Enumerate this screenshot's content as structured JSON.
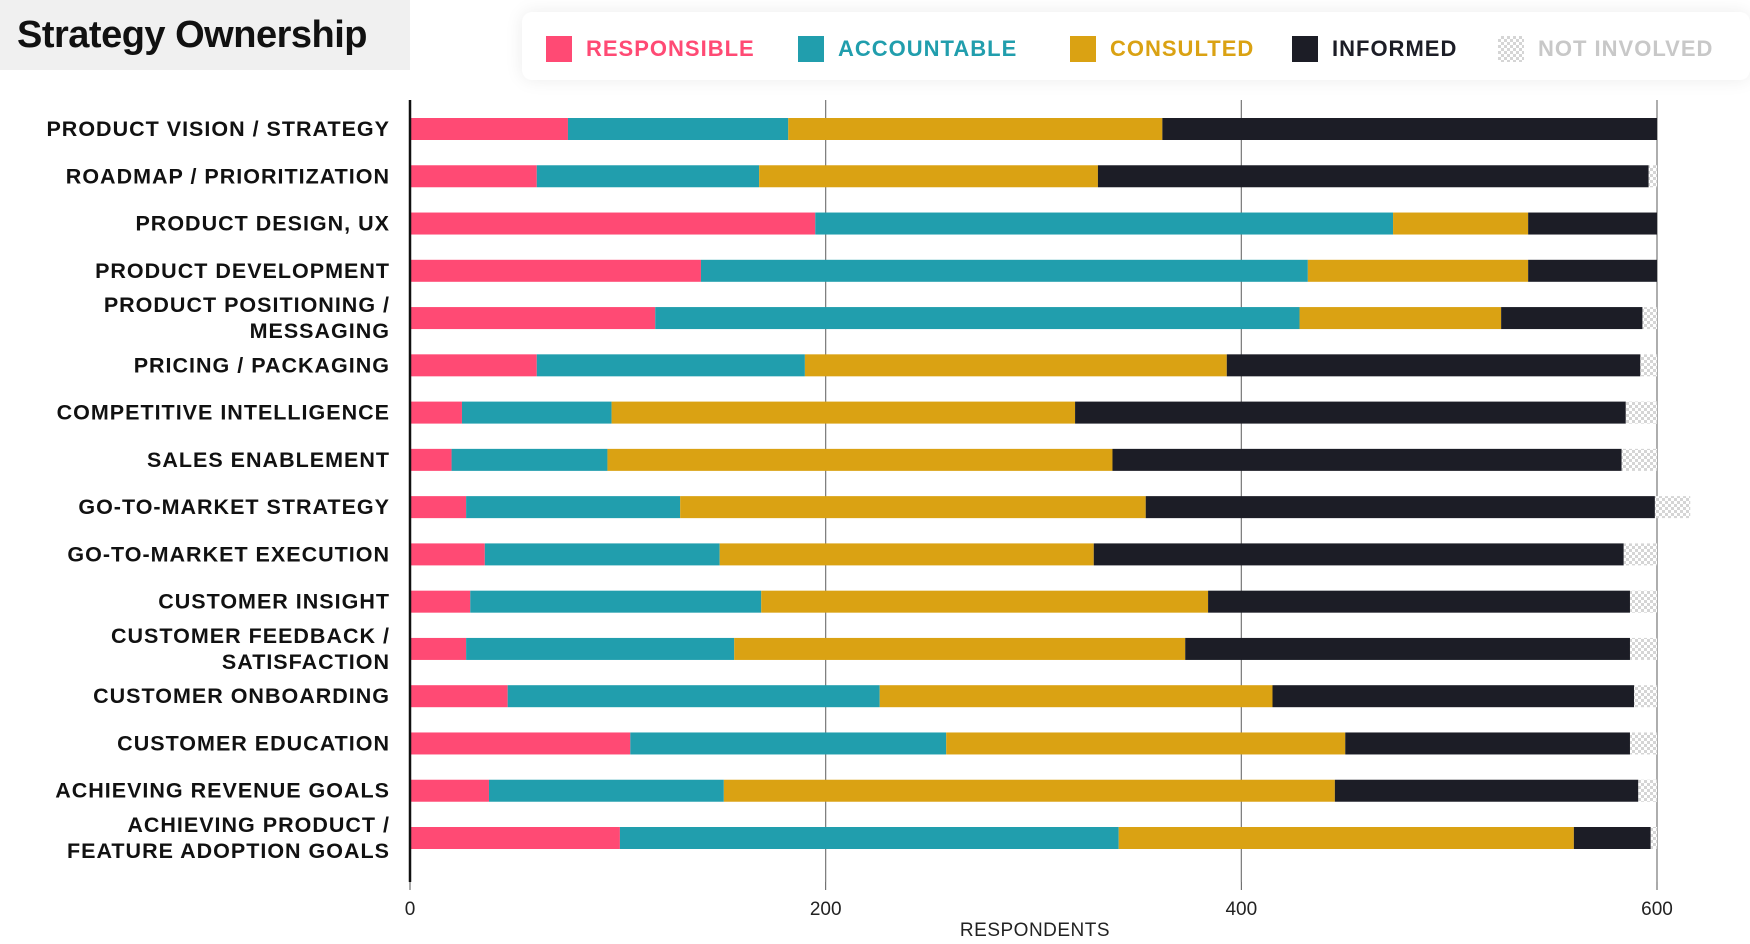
{
  "title": "Strategy Ownership",
  "legend": [
    {
      "label": "RESPONSIBLE",
      "color": "#ff4a74",
      "text_color": "#ff4a74"
    },
    {
      "label": "ACCOUNTABLE",
      "color": "#219ead",
      "text_color": "#219ead"
    },
    {
      "label": "CONSULTED",
      "color": "#daa213",
      "text_color": "#daa213"
    },
    {
      "label": "INFORMED",
      "color": "#1c1d26",
      "text_color": "#1c1d26"
    },
    {
      "label": "NOT INVOLVED",
      "color": "#d9d9d9",
      "text_color": "#c8c8c8"
    }
  ],
  "chart_data": {
    "type": "bar",
    "orientation": "horizontal",
    "stacked": true,
    "xlabel": "RESPONDENTS",
    "xlim": [
      0,
      600
    ],
    "xticks": [
      0,
      200,
      400,
      600
    ],
    "grid": true,
    "legend_position": "top",
    "categories": [
      [
        "PRODUCT VISION / STRATEGY"
      ],
      [
        "ROADMAP / PRIORITIZATION"
      ],
      [
        "PRODUCT DESIGN, UX"
      ],
      [
        "PRODUCT DEVELOPMENT"
      ],
      [
        "PRODUCT POSITIONING /",
        "MESSAGING"
      ],
      [
        "PRICING / PACKAGING"
      ],
      [
        "COMPETITIVE INTELLIGENCE"
      ],
      [
        "SALES ENABLEMENT"
      ],
      [
        "GO-TO-MARKET STRATEGY"
      ],
      [
        "GO-TO-MARKET EXECUTION"
      ],
      [
        "CUSTOMER INSIGHT"
      ],
      [
        "CUSTOMER FEEDBACK /",
        "SATISFACTION"
      ],
      [
        "CUSTOMER ONBOARDING"
      ],
      [
        "CUSTOMER EDUCATION"
      ],
      [
        "ACHIEVING REVENUE GOALS"
      ],
      [
        "ACHIEVING PRODUCT /",
        "FEATURE ADOPTION GOALS"
      ]
    ],
    "series": [
      {
        "name": "RESPONSIBLE",
        "color": "#ff4a74",
        "values": [
          76,
          61,
          195,
          140,
          118,
          61,
          25,
          20,
          27,
          36,
          29,
          27,
          47,
          106,
          38,
          101
        ]
      },
      {
        "name": "ACCOUNTABLE",
        "color": "#219ead",
        "values": [
          106,
          107,
          278,
          292,
          310,
          129,
          72,
          75,
          103,
          113,
          140,
          129,
          179,
          152,
          113,
          240
        ]
      },
      {
        "name": "CONSULTED",
        "color": "#daa213",
        "values": [
          180,
          163,
          65,
          106,
          97,
          203,
          223,
          243,
          224,
          180,
          215,
          217,
          189,
          192,
          294,
          219
        ]
      },
      {
        "name": "INFORMED",
        "color": "#1c1d26",
        "values": [
          238,
          265,
          62,
          62,
          68,
          199,
          265,
          245,
          245,
          255,
          203,
          214,
          174,
          137,
          146,
          37
        ]
      },
      {
        "name": "NOT INVOLVED",
        "color": "#d9d9d9",
        "values": [
          0,
          4,
          0,
          0,
          7,
          8,
          15,
          17,
          17,
          16,
          13,
          13,
          11,
          13,
          9,
          3
        ]
      }
    ]
  }
}
